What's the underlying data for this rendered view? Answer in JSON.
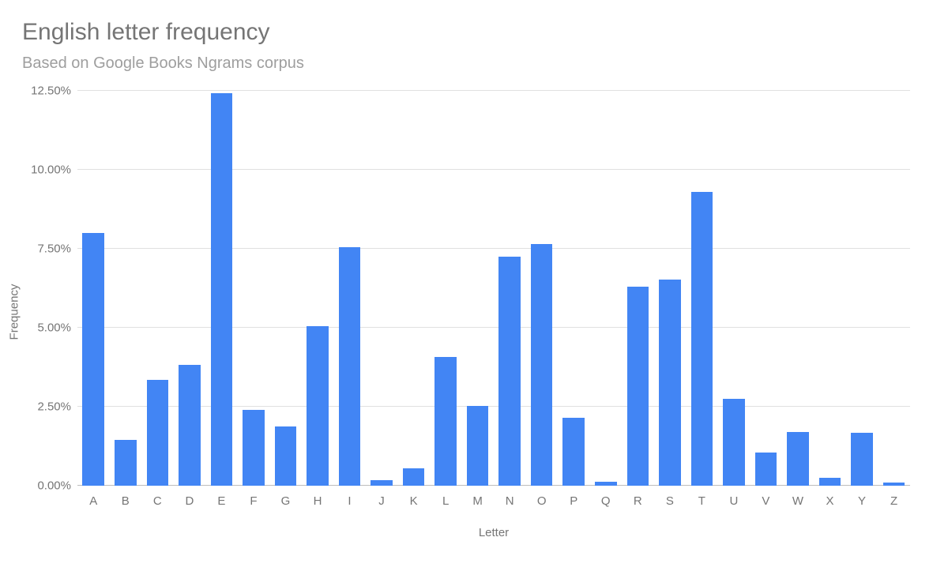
{
  "title": "English letter frequency",
  "subtitle": "Based on Google Books Ngrams corpus",
  "chart": {
    "type": "bar",
    "xlabel": "Letter",
    "ylabel": "Frequency",
    "ylim": [
      0,
      12.5
    ],
    "ytick_step": 2.5,
    "yticks": [
      0,
      2.5,
      5.0,
      7.5,
      10.0,
      12.5
    ],
    "ytick_labels": [
      "0.00%",
      "2.50%",
      "5.00%",
      "7.50%",
      "10.00%",
      "12.50%"
    ],
    "y_format": "percent_two_decimals",
    "categories": [
      "A",
      "B",
      "C",
      "D",
      "E",
      "F",
      "G",
      "H",
      "I",
      "J",
      "K",
      "L",
      "M",
      "N",
      "O",
      "P",
      "Q",
      "R",
      "S",
      "T",
      "U",
      "V",
      "W",
      "X",
      "Y",
      "Z"
    ],
    "values": [
      8.0,
      1.44,
      3.34,
      3.82,
      12.41,
      2.4,
      1.87,
      5.05,
      7.53,
      0.16,
      0.54,
      4.07,
      2.51,
      7.24,
      7.64,
      2.14,
      0.12,
      6.28,
      6.51,
      9.28,
      2.73,
      1.05,
      1.68,
      0.23,
      1.66,
      0.09
    ],
    "bar_color": "#4285f4",
    "bar_width": 0.68,
    "background_color": "#ffffff",
    "grid_color": "#e0e0e0",
    "baseline_color": "#bdbdbd",
    "text_color": "#757575",
    "subtitle_color": "#9e9e9e",
    "title_fontsize": 30,
    "subtitle_fontsize": 20,
    "label_fontsize": 15,
    "tick_fontsize": 15,
    "grid": true
  }
}
